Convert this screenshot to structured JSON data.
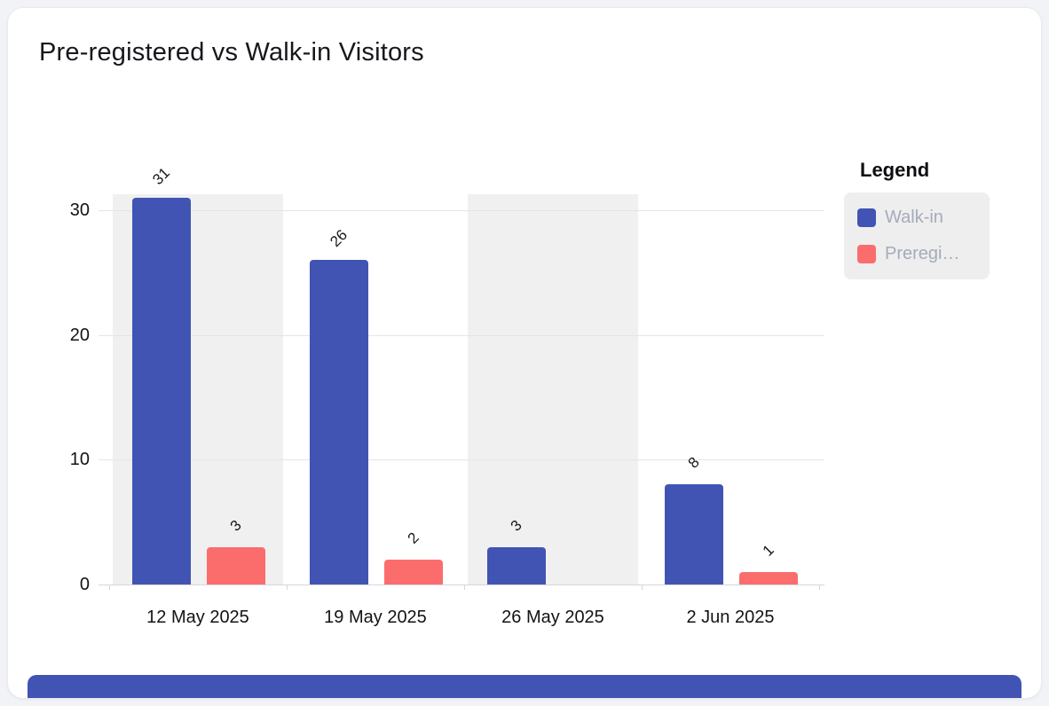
{
  "title": "Pre-registered vs Walk-in Visitors",
  "colors": {
    "walk_in": "#4154b3",
    "preregistered": "#fb6d6d",
    "band": "#f0f0f1",
    "grid": "#e5e5e8",
    "legend_bg": "#eeeeef",
    "legend_text": "#a5abba",
    "bottom_bar": "#4154b3",
    "page_bg": "#f2f3f6",
    "card_bg": "#ffffff"
  },
  "legend": {
    "title": "Legend",
    "items": [
      {
        "label": "Walk-in",
        "color": "#4154b3"
      },
      {
        "label": "Preregi…",
        "color": "#fb6d6d"
      }
    ]
  },
  "chart_data": {
    "type": "bar",
    "title": "Pre-registered vs Walk-in Visitors",
    "categories": [
      "12 May 2025",
      "19 May 2025",
      "26 May 2025",
      "2 Jun 2025"
    ],
    "series": [
      {
        "name": "Walk-in",
        "color": "#4154b3",
        "values": [
          31,
          26,
          3,
          8
        ]
      },
      {
        "name": "Preregistered",
        "color": "#fb6d6d",
        "values": [
          3,
          2,
          0,
          1
        ]
      }
    ],
    "data_labels": true,
    "data_label_rotation": -45,
    "yticks": [
      0,
      10,
      20,
      30
    ],
    "ylim": [
      0,
      31
    ],
    "grid": true,
    "highlight_band_indexes": [
      0,
      2
    ],
    "legend_position": "right",
    "xlabel": "",
    "ylabel": ""
  }
}
